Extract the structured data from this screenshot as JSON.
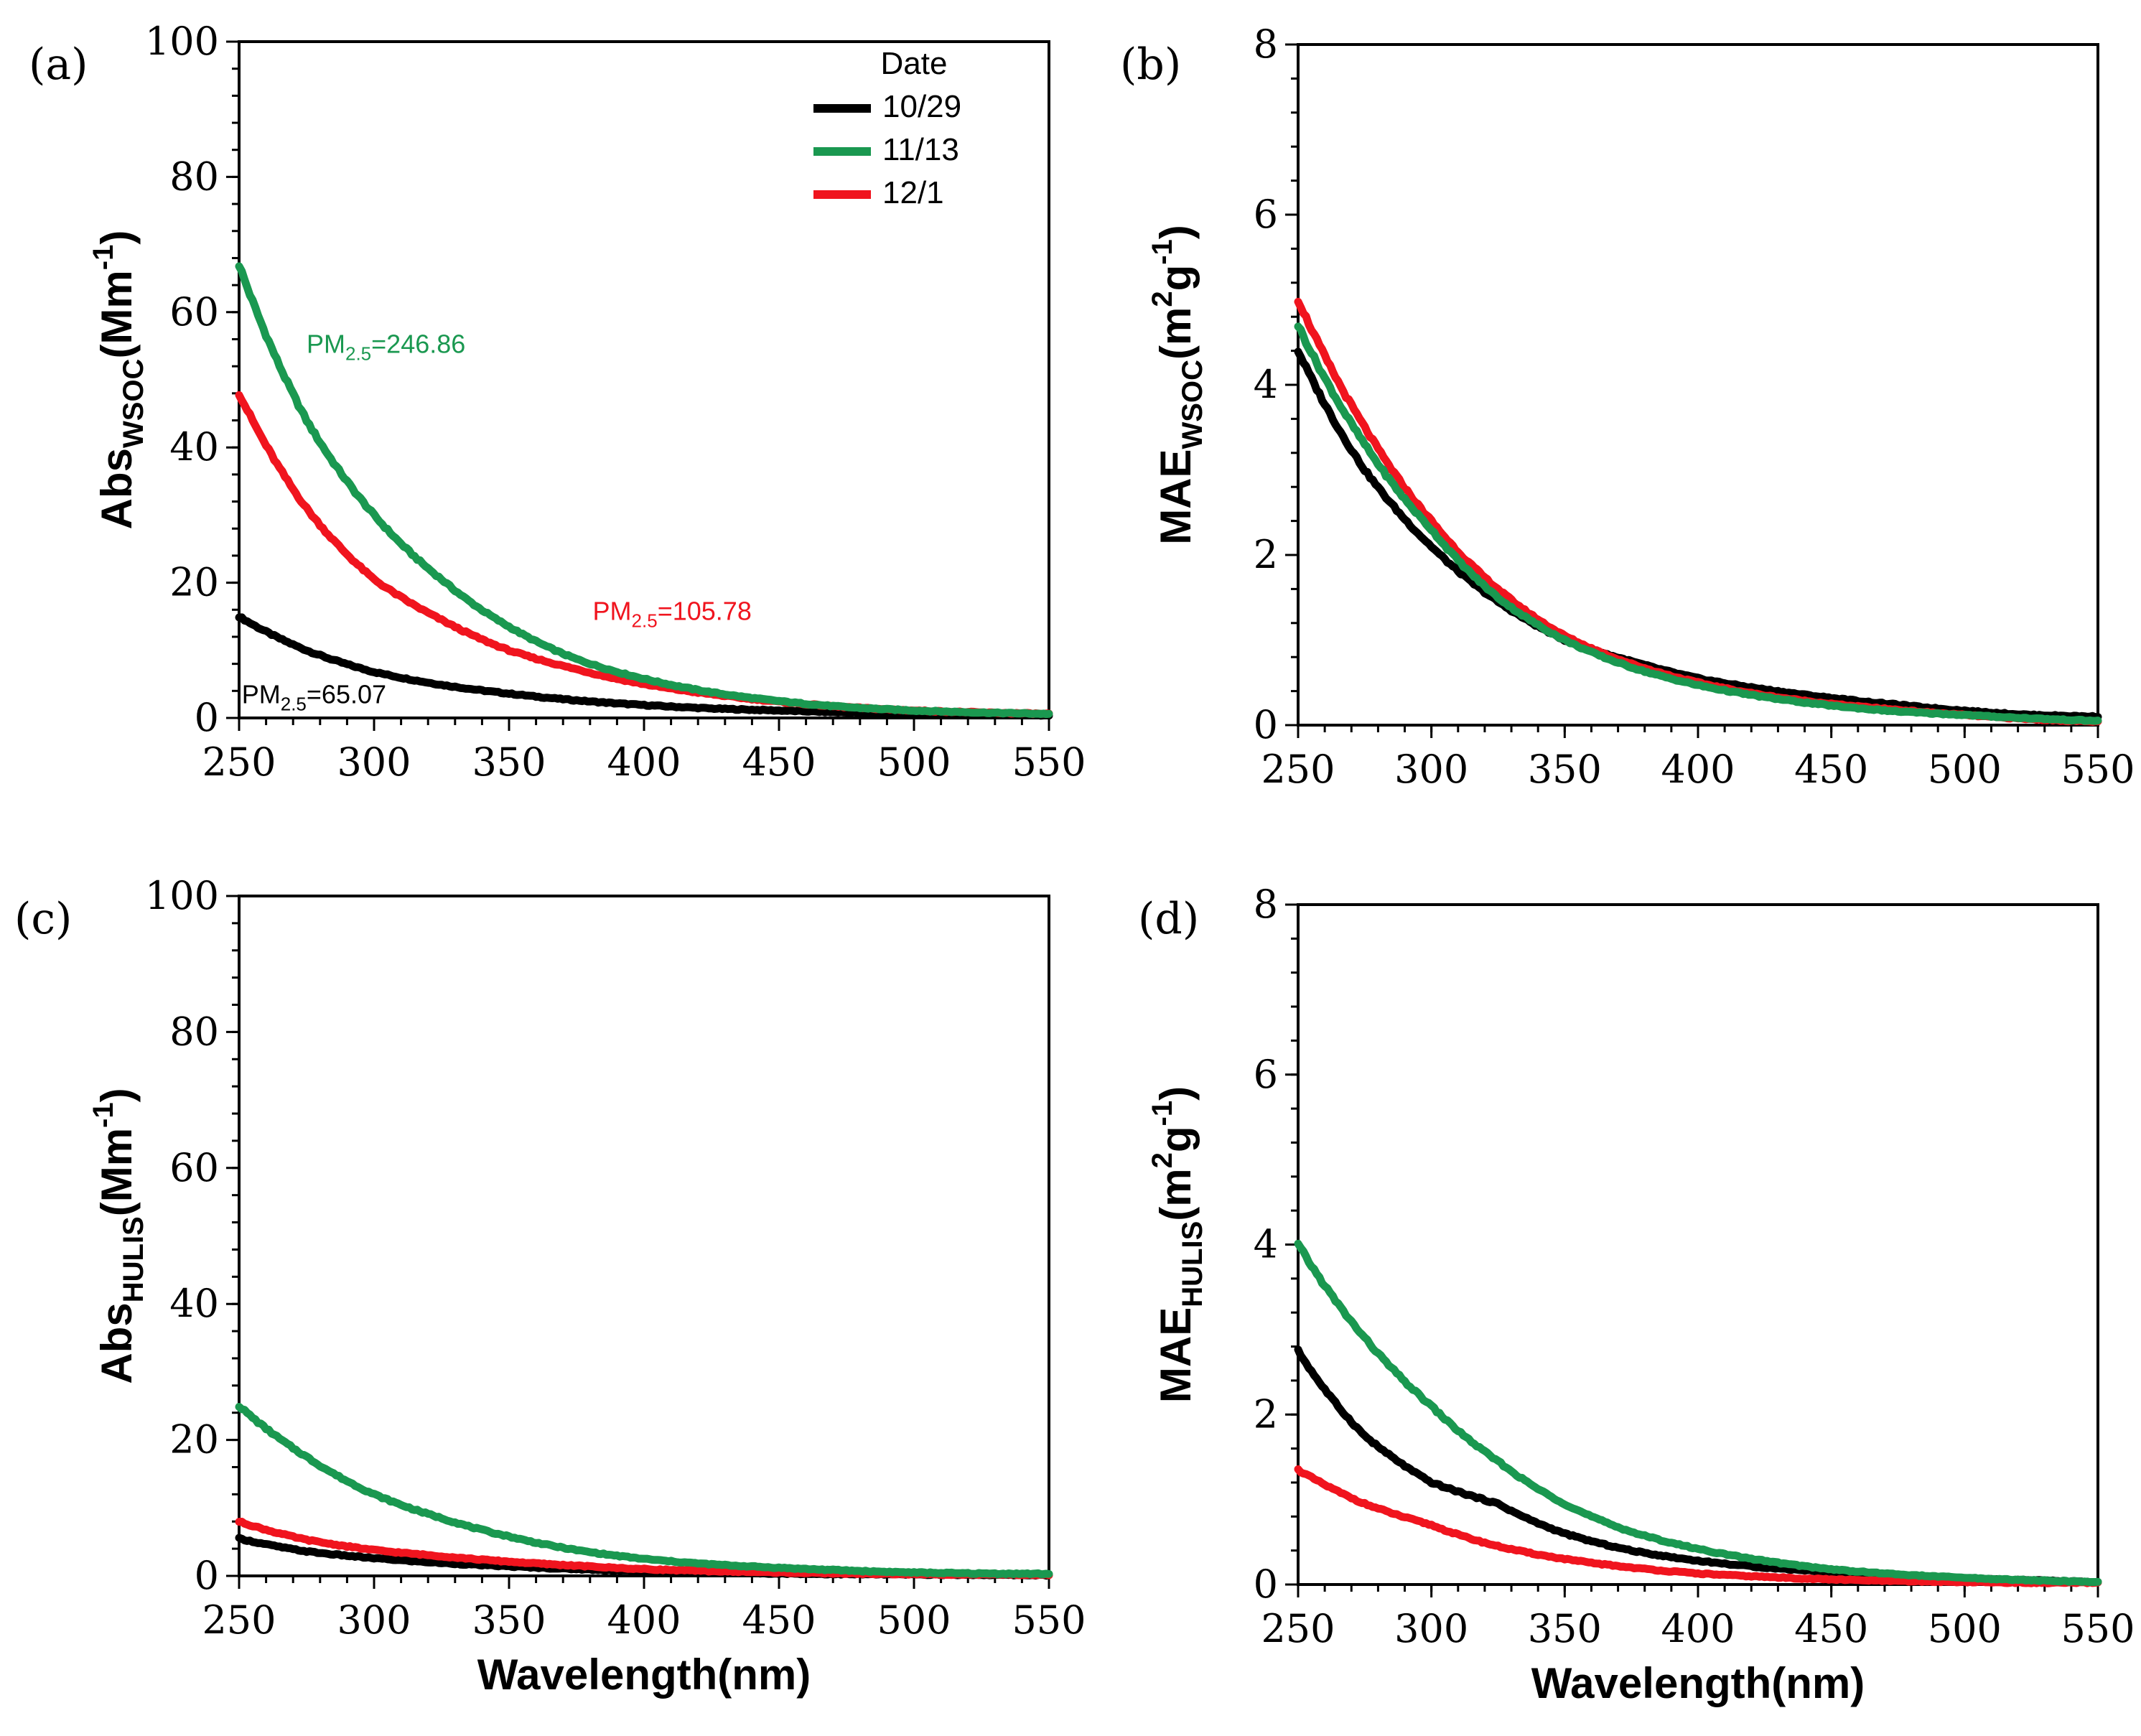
{
  "colors": {
    "black": "#000000",
    "green": "#1a9850",
    "red": "#f0141e"
  },
  "chart_data": [
    {
      "id": "a",
      "type": "line",
      "panel_label": "(a)",
      "ylabel_main": "Abs",
      "ylabel_sub": "WSOC",
      "ylabel_unit": "(Mm",
      "ylabel_sup": "-1",
      "ylabel_close": ")",
      "xlabel": "",
      "xlim": [
        250,
        550
      ],
      "ylim": [
        0,
        100
      ],
      "xticks": [
        250,
        300,
        350,
        400,
        450,
        500,
        550
      ],
      "yticks": [
        0,
        20,
        40,
        60,
        80,
        100
      ],
      "x": [
        250,
        275,
        300,
        325,
        350,
        375,
        400,
        425,
        450,
        475,
        500,
        525,
        550
      ],
      "series": [
        {
          "name": "10/29",
          "color": "#000000",
          "values": [
            15,
            10,
            6.8,
            4.9,
            3.6,
            2.6,
            1.9,
            1.4,
            1.1,
            0.8,
            0.6,
            0.5,
            0.4
          ]
        },
        {
          "name": "11/13",
          "color": "#1a9850",
          "values": [
            67,
            44,
            30,
            20.5,
            13.5,
            8.7,
            5.8,
            3.8,
            2.5,
            1.6,
            1.1,
            0.8,
            0.6
          ]
        },
        {
          "name": "12/1",
          "color": "#f0141e",
          "values": [
            48,
            31,
            20.5,
            14.5,
            10,
            7.2,
            5,
            3.5,
            2.4,
            1.6,
            1.1,
            0.8,
            0.6
          ]
        }
      ],
      "legend": {
        "title": "Date",
        "position": "top-right",
        "entries": [
          "10/29",
          "11/13",
          "12/1"
        ]
      },
      "annotations": [
        {
          "main": "PM",
          "sub": "2.5",
          "value": "=246.86",
          "color": "#1a9850",
          "x": 275,
          "y": 54
        },
        {
          "main": "PM",
          "sub": "2.5",
          "value": "=105.78",
          "color": "#f0141e",
          "x": 381,
          "y": 14.5
        },
        {
          "main": "PM",
          "sub": "2.5",
          "value": "=65.07",
          "color": "#000000",
          "x": 251,
          "y": 2.2
        }
      ]
    },
    {
      "id": "b",
      "type": "line",
      "panel_label": "(b)",
      "ylabel_main": "MAE",
      "ylabel_sub": "WSOC",
      "ylabel_unit": "(m",
      "ylabel_sup": "2",
      "ylabel_unit2": "g",
      "ylabel_sup2": "-1",
      "ylabel_close": ")",
      "xlabel": "",
      "xlim": [
        250,
        550
      ],
      "ylim": [
        0,
        8
      ],
      "xticks": [
        250,
        300,
        350,
        400,
        450,
        500,
        550
      ],
      "yticks": [
        0,
        2,
        4,
        6,
        8
      ],
      "x": [
        250,
        275,
        300,
        325,
        350,
        375,
        400,
        425,
        450,
        475,
        500,
        525,
        550
      ],
      "series": [
        {
          "name": "10/29",
          "color": "#000000",
          "values": [
            4.4,
            3.0,
            2.1,
            1.45,
            1.0,
            0.75,
            0.55,
            0.42,
            0.32,
            0.24,
            0.17,
            0.12,
            0.1
          ]
        },
        {
          "name": "11/13",
          "color": "#1a9850",
          "values": [
            4.7,
            3.3,
            2.3,
            1.5,
            1.0,
            0.68,
            0.47,
            0.33,
            0.23,
            0.16,
            0.12,
            0.08,
            0.05
          ]
        },
        {
          "name": "12/1",
          "color": "#f0141e",
          "values": [
            5.0,
            3.5,
            2.4,
            1.6,
            1.05,
            0.72,
            0.5,
            0.35,
            0.25,
            0.18,
            0.12,
            0.07,
            0.04
          ]
        }
      ]
    },
    {
      "id": "c",
      "type": "line",
      "panel_label": "(c)",
      "ylabel_main": "Abs",
      "ylabel_sub": "HULIS",
      "ylabel_unit": "(Mm",
      "ylabel_sup": "-1",
      "ylabel_close": ")",
      "xlabel": "Wavelength(nm)",
      "xlim": [
        250,
        550
      ],
      "ylim": [
        0,
        100
      ],
      "xticks": [
        250,
        300,
        350,
        400,
        450,
        500,
        550
      ],
      "yticks": [
        0,
        20,
        40,
        60,
        80,
        100
      ],
      "x": [
        250,
        275,
        300,
        325,
        350,
        375,
        400,
        425,
        450,
        475,
        500,
        525,
        550
      ],
      "series": [
        {
          "name": "10/29",
          "color": "#000000",
          "values": [
            5.5,
            3.6,
            2.6,
            1.9,
            1.4,
            1.0,
            0.7,
            0.5,
            0.35,
            0.25,
            0.2,
            0.15,
            0.1
          ]
        },
        {
          "name": "11/13",
          "color": "#1a9850",
          "values": [
            25,
            17.5,
            12,
            8.5,
            5.8,
            3.8,
            2.5,
            1.7,
            1.2,
            0.8,
            0.5,
            0.35,
            0.3
          ]
        },
        {
          "name": "12/1",
          "color": "#f0141e",
          "values": [
            8,
            5.3,
            3.8,
            2.9,
            2.1,
            1.5,
            1.0,
            0.7,
            0.5,
            0.35,
            0.25,
            0.2,
            0.15
          ]
        }
      ]
    },
    {
      "id": "d",
      "type": "line",
      "panel_label": "(d)",
      "ylabel_main": "MAE",
      "ylabel_sub": "HULIS",
      "ylabel_unit": "(m",
      "ylabel_sup": "2",
      "ylabel_unit2": "g",
      "ylabel_sup2": "-1",
      "ylabel_close": ")",
      "xlabel": "Wavelength(nm)",
      "xlim": [
        250,
        550
      ],
      "ylim": [
        0,
        8
      ],
      "xticks": [
        250,
        300,
        350,
        400,
        450,
        500,
        550
      ],
      "yticks": [
        0,
        2,
        4,
        6,
        8
      ],
      "x": [
        250,
        275,
        300,
        325,
        350,
        375,
        400,
        425,
        450,
        475,
        500,
        525,
        550
      ],
      "series": [
        {
          "name": "10/29",
          "color": "#000000",
          "values": [
            2.75,
            1.75,
            1.2,
            0.95,
            0.6,
            0.4,
            0.28,
            0.2,
            0.15,
            0.1,
            0.07,
            0.05,
            0.03
          ]
        },
        {
          "name": "11/13",
          "color": "#1a9850",
          "values": [
            4.0,
            2.9,
            2.1,
            1.45,
            0.95,
            0.62,
            0.42,
            0.28,
            0.18,
            0.12,
            0.08,
            0.05,
            0.03
          ]
        },
        {
          "name": "12/1",
          "color": "#f0141e",
          "values": [
            1.35,
            0.95,
            0.7,
            0.45,
            0.3,
            0.2,
            0.13,
            0.09,
            0.06,
            0.04,
            0.03,
            0.02,
            0.02
          ]
        }
      ]
    }
  ]
}
